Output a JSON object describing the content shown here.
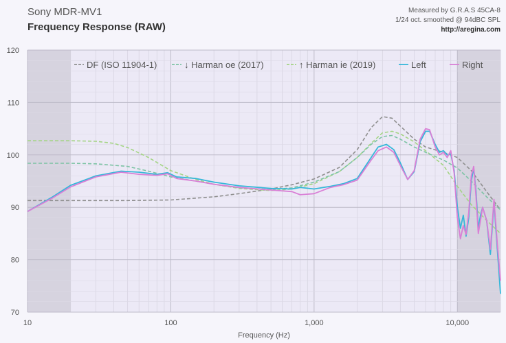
{
  "header": {
    "title": "Sony MDR-MV1",
    "subtitle": "Frequency Response (RAW)",
    "meta_line1": "Measured by G.R.A.S 45CA-8",
    "meta_line2": "1/24 oct. smoothed @ 94dBC  SPL",
    "meta_url": "http://aregina.com"
  },
  "chart_data": {
    "type": "line",
    "xlabel": "Frequency (Hz)",
    "ylabel": "",
    "x_scale": "log",
    "xlim": [
      10,
      20000
    ],
    "ylim": [
      70,
      120
    ],
    "x_ticks": [
      10,
      100,
      1000,
      10000
    ],
    "x_tick_labels": [
      "10",
      "100",
      "1,000",
      "10,000"
    ],
    "y_ticks": [
      70,
      80,
      90,
      100,
      110,
      120
    ],
    "y_tick_labels": [
      "70",
      "80",
      "90",
      "100",
      "110",
      "120"
    ],
    "grid": true,
    "legend_position": "top",
    "shaded_regions": [
      [
        10,
        20
      ],
      [
        10000,
        20000
      ]
    ],
    "series": [
      {
        "name": "DF (ISO 11904-1)",
        "style": "dashed",
        "color": "#8f8f8f",
        "x": [
          10,
          20,
          50,
          100,
          200,
          300,
          500,
          700,
          1000,
          1500,
          2000,
          2500,
          3000,
          3500,
          4000,
          5000,
          6000,
          8000,
          10000,
          12500,
          16000,
          20000
        ],
        "y": [
          91.3,
          91.3,
          91.3,
          91.4,
          92.0,
          92.6,
          93.5,
          94.3,
          95.4,
          97.6,
          101.0,
          105.2,
          107.3,
          107.0,
          105.5,
          103.0,
          101.5,
          100.5,
          99.5,
          97.0,
          93.0,
          89.5
        ]
      },
      {
        "name": "↓ Harman oe (2017)",
        "style": "dashed",
        "color": "#7cc3a4",
        "x": [
          10,
          20,
          30,
          50,
          70,
          100,
          150,
          200,
          300,
          500,
          700,
          1000,
          1500,
          2000,
          2500,
          3000,
          3500,
          4000,
          5000,
          6000,
          8000,
          10000,
          12500,
          16000,
          20000
        ],
        "y": [
          98.4,
          98.4,
          98.3,
          97.8,
          96.9,
          95.8,
          95.0,
          94.4,
          93.7,
          93.4,
          93.7,
          94.8,
          96.8,
          99.5,
          102.0,
          103.5,
          103.7,
          103.0,
          101.5,
          100.5,
          99.0,
          97.5,
          95.0,
          92.0,
          89.5
        ]
      },
      {
        "name": "↑ Harman ie (2019)",
        "style": "dashed",
        "color": "#a3d483",
        "x": [
          10,
          20,
          30,
          40,
          50,
          70,
          100,
          150,
          200,
          300,
          500,
          700,
          1000,
          1500,
          2000,
          2500,
          3000,
          3500,
          4000,
          5000,
          6000,
          8000,
          10000,
          12500,
          16000,
          20000
        ],
        "y": [
          102.7,
          102.7,
          102.6,
          102.2,
          101.4,
          99.5,
          97.0,
          95.3,
          94.4,
          93.6,
          93.2,
          93.5,
          94.5,
          96.8,
          99.5,
          102.2,
          104.2,
          104.5,
          104.0,
          102.5,
          100.8,
          98.0,
          94.0,
          90.5,
          87.5,
          85.0
        ]
      },
      {
        "name": "Left",
        "style": "solid",
        "color": "#36b7d9",
        "x": [
          10,
          15,
          20,
          30,
          45,
          60,
          80,
          95,
          110,
          150,
          200,
          300,
          500,
          700,
          800,
          1000,
          1300,
          1600,
          2000,
          2500,
          2800,
          3200,
          3600,
          4000,
          4500,
          5000,
          5500,
          6000,
          6400,
          7000,
          7500,
          8000,
          8500,
          9000,
          9500,
          10000,
          10500,
          11000,
          11500,
          12000,
          12500,
          13000,
          13500,
          14000,
          14500,
          15000,
          16000,
          17000,
          18000,
          19000,
          20000
        ],
        "y": [
          89.2,
          92.0,
          94.2,
          96.0,
          96.9,
          96.7,
          96.3,
          96.6,
          95.8,
          95.5,
          94.8,
          94.1,
          93.6,
          93.5,
          93.8,
          93.5,
          94.0,
          94.5,
          95.5,
          99.5,
          101.5,
          102.0,
          101.0,
          98.5,
          95.3,
          96.8,
          102.5,
          104.5,
          104.5,
          102.0,
          100.5,
          100.8,
          100.0,
          100.2,
          97.0,
          90.0,
          86.0,
          88.5,
          84.5,
          88.0,
          95.0,
          97.5,
          93.0,
          86.0,
          88.5,
          90.0,
          87.5,
          81.0,
          91.0,
          82.0,
          73.5
        ]
      },
      {
        "name": "Right",
        "style": "solid",
        "color": "#d97fd6",
        "x": [
          10,
          15,
          20,
          30,
          45,
          60,
          80,
          95,
          110,
          150,
          200,
          300,
          500,
          700,
          800,
          1000,
          1300,
          1600,
          2000,
          2500,
          2800,
          3200,
          3600,
          4000,
          4500,
          5000,
          5500,
          6000,
          6400,
          7000,
          7500,
          8000,
          8500,
          9000,
          9500,
          10000,
          10500,
          11000,
          11500,
          12000,
          12500,
          13000,
          13500,
          14000,
          14500,
          15000,
          16000,
          17000,
          18000,
          19000,
          20000
        ],
        "y": [
          89.2,
          91.8,
          93.9,
          95.8,
          96.7,
          96.3,
          96.1,
          96.4,
          95.5,
          95.0,
          94.4,
          93.8,
          93.3,
          93.0,
          92.4,
          92.6,
          93.8,
          94.3,
          95.2,
          99.0,
          100.8,
          101.5,
          100.5,
          98.0,
          95.3,
          97.0,
          103.0,
          105.0,
          104.8,
          101.5,
          100.0,
          100.5,
          99.5,
          100.8,
          96.5,
          88.0,
          84.0,
          86.5,
          84.8,
          89.0,
          96.0,
          97.8,
          92.0,
          85.0,
          87.5,
          90.0,
          87.5,
          82.0,
          91.5,
          83.0,
          76.0
        ]
      }
    ]
  }
}
